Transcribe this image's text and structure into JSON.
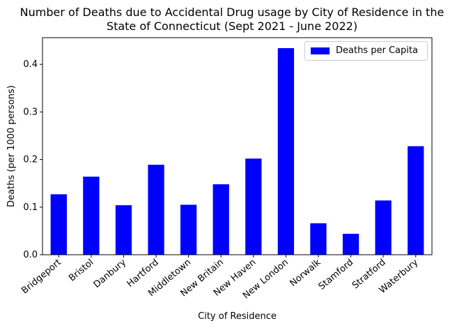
{
  "chart_data": {
    "type": "bar",
    "title_lines": [
      "Number of Deaths due to Accidental Drug usage by City of Residence in the",
      "State of Connecticut (Sept 2021 - June 2022)"
    ],
    "xlabel": "City of Residence",
    "ylabel": "Deaths (per 1000 persons)",
    "categories": [
      "Bridgeport",
      "Bristol",
      "Danbury",
      "Hartford",
      "Middletown",
      "New Britain",
      "New Haven",
      "New London",
      "Norwalk",
      "Stamford",
      "Stratford",
      "Waterbury"
    ],
    "series": [
      {
        "name": "Deaths per Capita",
        "color": "#0000ff",
        "values": [
          0.127,
          0.164,
          0.104,
          0.189,
          0.105,
          0.148,
          0.202,
          0.434,
          0.066,
          0.044,
          0.114,
          0.228
        ]
      }
    ],
    "ylim": [
      0,
      0.456
    ],
    "yticks": [
      0.0,
      0.1,
      0.2,
      0.3,
      0.4
    ],
    "ytick_labels": [
      "0.0",
      "0.1",
      "0.2",
      "0.3",
      "0.4"
    ],
    "legend_position": "top-right",
    "grid": false
  }
}
